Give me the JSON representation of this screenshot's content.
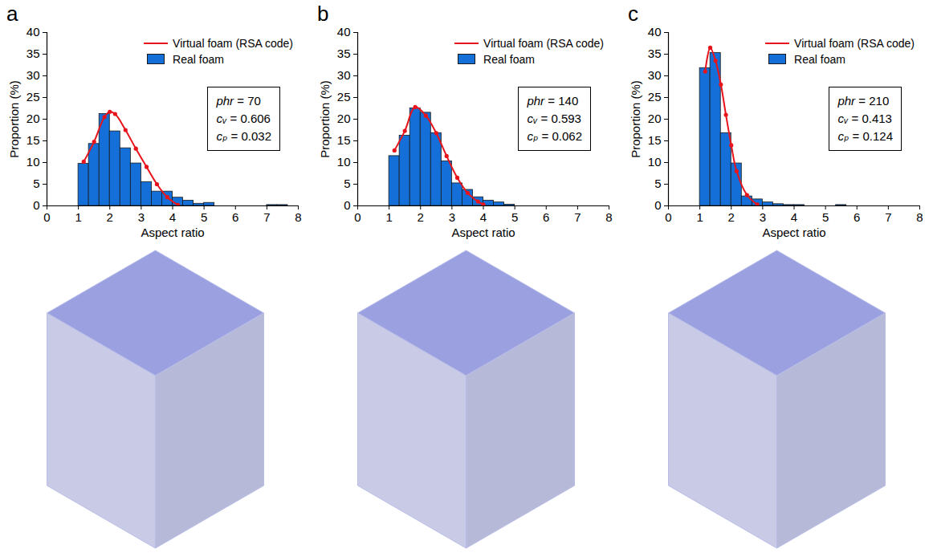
{
  "chart_data": [
    {
      "type": "histogram",
      "panel_label": "a",
      "xlabel": "Aspect ratio",
      "ylabel": "Proportion (%)",
      "xlim": [
        0,
        8
      ],
      "xticks": [
        0,
        1,
        2,
        3,
        4,
        5,
        6,
        7,
        8
      ],
      "ylim": [
        0,
        40
      ],
      "yticks": [
        0,
        5,
        10,
        15,
        20,
        25,
        30,
        35,
        40
      ],
      "legend": "top-right",
      "grid": false,
      "annotations": [
        "phr = 70",
        "cᵥ = 0.606",
        "cₚ = 0.032"
      ],
      "bins": [
        1,
        1.333,
        1.667,
        2,
        2.333,
        2.667,
        3,
        3.333,
        3.667,
        4,
        4.333,
        4.667,
        5,
        5.333,
        5.667,
        6,
        6.333,
        6.667,
        7,
        7.333,
        7.667,
        8
      ],
      "series": [
        {
          "name": "Virtual foam (RSA code)",
          "type": "line",
          "color": "#e8141c",
          "marker": "circle",
          "line_style": "solid",
          "x": [
            1.17,
            1.5,
            1.83,
            2,
            2.17,
            2.5,
            2.83,
            3.17,
            3.5,
            3.83,
            4.17
          ],
          "values": [
            10.2,
            14.8,
            20.5,
            21.7,
            21.2,
            17.5,
            13.2,
            9,
            5,
            2,
            0.2
          ]
        },
        {
          "name": "Real foam",
          "type": "bar",
          "color": "#1470d8",
          "values": [
            9.7,
            14.3,
            21.2,
            17.2,
            13.3,
            9.8,
            5.5,
            3.3,
            3.3,
            1.9,
            1.2,
            0.5,
            0.7,
            0,
            0,
            0,
            0,
            0,
            0.2,
            0.2,
            0
          ]
        }
      ]
    },
    {
      "type": "histogram",
      "panel_label": "b",
      "xlabel": "Aspect ratio",
      "ylabel": "Proportion (%)",
      "xlim": [
        0,
        8
      ],
      "xticks": [
        0,
        1,
        2,
        3,
        4,
        5,
        6,
        7,
        8
      ],
      "ylim": [
        0,
        40
      ],
      "yticks": [
        0,
        5,
        10,
        15,
        20,
        25,
        30,
        35,
        40
      ],
      "legend": "top-right",
      "grid": false,
      "annotations": [
        "phr = 140",
        "cᵥ = 0.593",
        "cₚ = 0.062"
      ],
      "bins": [
        1,
        1.333,
        1.667,
        2,
        2.333,
        2.667,
        3,
        3.333,
        3.667,
        4,
        4.333,
        4.667,
        5,
        5.333,
        5.667,
        6,
        6.333,
        6.667,
        7,
        7.333,
        7.667,
        8
      ],
      "series": [
        {
          "name": "Virtual foam (RSA code)",
          "type": "line",
          "color": "#e8141c",
          "marker": "circle",
          "line_style": "solid",
          "x": [
            1.17,
            1.5,
            1.83,
            2.17,
            2.5,
            2.83,
            3.17,
            3.5,
            3.83,
            4.0
          ],
          "values": [
            12.8,
            17.3,
            22.8,
            20.8,
            16.8,
            11.5,
            6.5,
            3,
            1,
            0.3
          ]
        },
        {
          "name": "Real foam",
          "type": "bar",
          "color": "#1470d8",
          "values": [
            11.5,
            16.2,
            22.5,
            21.5,
            16.8,
            10.3,
            5.2,
            3.7,
            2.0,
            1.2,
            0.8,
            0.3,
            0,
            0,
            0,
            0,
            0,
            0,
            0,
            0,
            0
          ]
        }
      ]
    },
    {
      "type": "histogram",
      "panel_label": "c",
      "xlabel": "Aspect ratio",
      "ylabel": "Proportion (%)",
      "xlim": [
        0,
        8
      ],
      "xticks": [
        0,
        1,
        2,
        3,
        4,
        5,
        6,
        7,
        8
      ],
      "ylim": [
        0,
        40
      ],
      "yticks": [
        0,
        5,
        10,
        15,
        20,
        25,
        30,
        35,
        40
      ],
      "legend": "top-right",
      "grid": false,
      "annotations": [
        "phr = 210",
        "cᵥ = 0.413",
        "cₚ = 0.124"
      ],
      "bins": [
        1,
        1.333,
        1.667,
        2,
        2.333,
        2.667,
        3,
        3.333,
        3.667,
        4,
        4.333,
        4.667,
        5,
        5.333,
        5.667,
        6,
        6.333,
        6.667,
        7,
        7.333,
        7.667,
        8
      ],
      "series": [
        {
          "name": "Virtual foam (RSA code)",
          "type": "line",
          "color": "#e8141c",
          "marker": "circle",
          "line_style": "solid",
          "x": [
            1.17,
            1.33,
            1.5,
            1.67,
            1.83,
            2.0,
            2.17,
            2.5,
            2.83
          ],
          "values": [
            31,
            36.5,
            33.5,
            28,
            21,
            14,
            8,
            2.5,
            0.3
          ]
        },
        {
          "name": "Real foam",
          "type": "bar",
          "color": "#1470d8",
          "values": [
            31.8,
            35.3,
            16.8,
            9.8,
            2.2,
            1.5,
            0.8,
            0.4,
            0.2,
            0.2,
            0,
            0,
            0,
            0.2,
            0,
            0,
            0,
            0,
            0,
            0,
            0
          ]
        }
      ]
    }
  ]
}
